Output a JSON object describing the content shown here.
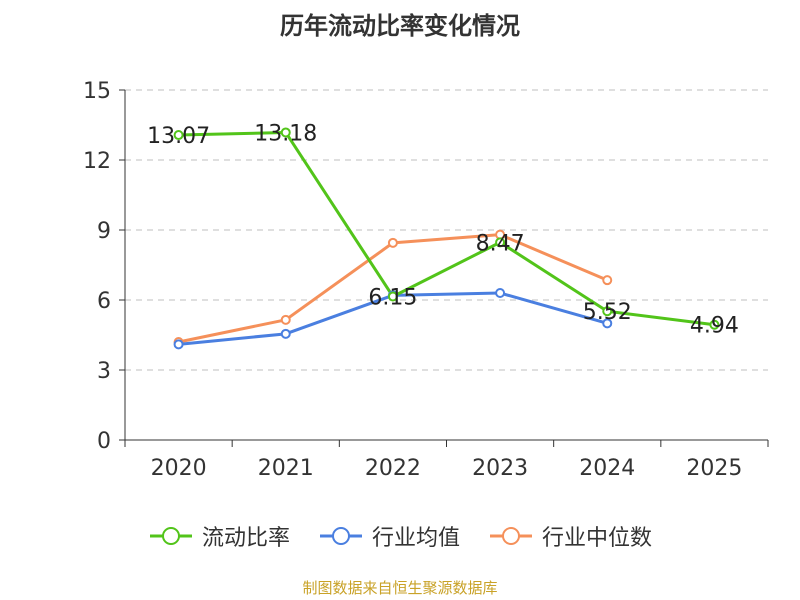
{
  "chart_data": {
    "type": "line",
    "title": "历年流动比率变化情况",
    "categories": [
      "2020",
      "2021",
      "2022",
      "2023",
      "2024",
      "2025"
    ],
    "yticks": [
      "0",
      "3",
      "6",
      "9",
      "12",
      "15"
    ],
    "ylim": [
      0,
      15
    ],
    "series": [
      {
        "name": "流动比率",
        "color": "#52c41a",
        "values": [
          13.07,
          13.18,
          6.15,
          8.47,
          5.52,
          4.94
        ],
        "labels": [
          "13.07",
          "13.18",
          "6.15",
          "8.47",
          "5.52",
          "4.94"
        ]
      },
      {
        "name": "行业均值",
        "color": "#4a7fe0",
        "values": [
          4.1,
          4.55,
          6.2,
          6.3,
          5.0,
          null
        ]
      },
      {
        "name": "行业中位数",
        "color": "#f5905a",
        "values": [
          4.2,
          5.15,
          8.45,
          8.8,
          6.85,
          null
        ]
      }
    ]
  },
  "source": "制图数据来自恒生聚源数据库"
}
